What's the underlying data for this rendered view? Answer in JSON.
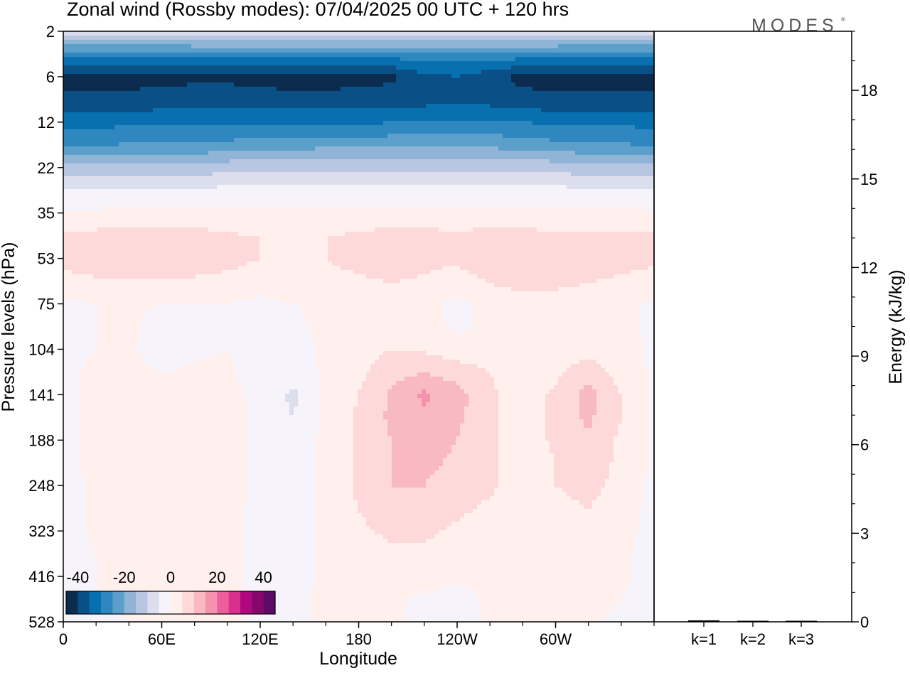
{
  "chart_data": [
    {
      "type": "heatmap",
      "title": "Zonal wind (Rossby modes):  07/04/2025  00 UTC  + 120 hrs",
      "xlabel": "Longitude",
      "ylabel": "Pressure levels (hPa)",
      "x_ticks": [
        "0",
        "60E",
        "120E",
        "180",
        "120W",
        "60W"
      ],
      "x_tick_values": [
        0,
        60,
        120,
        180,
        240,
        300
      ],
      "xlim": [
        0,
        360
      ],
      "y_ticks": [
        "2",
        "6",
        "12",
        "22",
        "35",
        "53",
        "75",
        "104",
        "141",
        "188",
        "248",
        "323",
        "416",
        "528"
      ],
      "colorbar": {
        "labels": [
          "-40",
          "-20",
          "0",
          "20",
          "40"
        ],
        "label_values": [
          -40,
          -20,
          0,
          20,
          40
        ],
        "levels": [
          -45,
          -40,
          -35,
          -30,
          -25,
          -20,
          -15,
          -10,
          -5,
          0,
          5,
          10,
          15,
          20,
          25,
          30,
          35,
          40,
          45
        ],
        "colors": [
          "#0c2c4f",
          "#0a4f85",
          "#0970b0",
          "#2e87bf",
          "#5c9fcb",
          "#8fb4d6",
          "#b8c6e2",
          "#dcdeee",
          "#f6f4fa",
          "#fff0ee",
          "#fdd9d9",
          "#f9b9c1",
          "#f592ad",
          "#ec5f9c",
          "#d9308f",
          "#b0087e",
          "#86076c",
          "#5b0a66"
        ]
      },
      "zonal_wind_field": {
        "description_levels_hPa": [
          2,
          4,
          6,
          9,
          12,
          16,
          22,
          28,
          35,
          44,
          53,
          64,
          75,
          88,
          104,
          122,
          141,
          165,
          188,
          218,
          248,
          285,
          323,
          370,
          416,
          472,
          528
        ],
        "longitudes": [
          0,
          20,
          40,
          60,
          80,
          100,
          120,
          140,
          160,
          180,
          200,
          220,
          240,
          260,
          280,
          300,
          320,
          340,
          360
        ],
        "u": [
          [
            -8,
            -8,
            -8,
            -8,
            -8,
            -8,
            -8,
            -8,
            -8,
            -8,
            -8,
            -8,
            -7,
            -8,
            -8,
            -8,
            -8,
            -8,
            -8
          ],
          [
            -32,
            -32,
            -32,
            -32,
            -31,
            -31,
            -31,
            -31,
            -31,
            -31,
            -31,
            -30,
            -29,
            -30,
            -31,
            -31,
            -32,
            -32,
            -32
          ],
          [
            -43,
            -43,
            -42,
            -42,
            -41,
            -41,
            -42,
            -43,
            -43,
            -42,
            -41,
            -36,
            -35,
            -38,
            -42,
            -43,
            -43,
            -43,
            -43
          ],
          [
            -38,
            -38,
            -38,
            -37,
            -37,
            -37,
            -37,
            -37,
            -37,
            -37,
            -37,
            -36,
            -35,
            -36,
            -37,
            -38,
            -38,
            -38,
            -38
          ],
          [
            -32,
            -32,
            -31,
            -31,
            -31,
            -31,
            -31,
            -31,
            -31,
            -31,
            -30,
            -29,
            -29,
            -29,
            -30,
            -31,
            -31,
            -31,
            -32
          ],
          [
            -26,
            -26,
            -25,
            -25,
            -25,
            -24,
            -23,
            -23,
            -22,
            -22,
            -22,
            -22,
            -22,
            -22,
            -23,
            -24,
            -25,
            -25,
            -26
          ],
          [
            -14,
            -14,
            -13,
            -13,
            -13,
            -12,
            -11,
            -11,
            -11,
            -11,
            -11,
            -11,
            -11,
            -11,
            -11,
            -12,
            -13,
            -13,
            -14
          ],
          [
            -5,
            -5,
            -4,
            -4,
            -4,
            -3,
            -3,
            -3,
            -3,
            -3,
            -3,
            -3,
            -3,
            -3,
            -3,
            -3,
            -4,
            -4,
            -5
          ],
          [
            1,
            1,
            2,
            2,
            2,
            2,
            2,
            2,
            2,
            2,
            2,
            2,
            2,
            2,
            2,
            2,
            2,
            2,
            1
          ],
          [
            6,
            7,
            7,
            7,
            7,
            6,
            5,
            4,
            5,
            6,
            7,
            7,
            6,
            7,
            7,
            6,
            6,
            6,
            6
          ],
          [
            7,
            8,
            8,
            8,
            8,
            7,
            5,
            4,
            5,
            7,
            8,
            7,
            6,
            10,
            9,
            8,
            7,
            7,
            6
          ],
          [
            3,
            4,
            4,
            4,
            4,
            3,
            2,
            2,
            3,
            4,
            5,
            4,
            2,
            5,
            7,
            6,
            5,
            4,
            3
          ],
          [
            -1,
            0,
            1,
            0,
            0,
            0,
            -1,
            0,
            1,
            2,
            4,
            1,
            -1,
            1,
            3,
            3,
            2,
            1,
            -1
          ],
          [
            -1,
            0,
            1,
            -2,
            -1,
            0,
            -2,
            -1,
            1,
            2,
            4,
            2,
            -1,
            1,
            2,
            2,
            2,
            1,
            -1
          ],
          [
            -1,
            0,
            1,
            -3,
            -1,
            0,
            -3,
            -2,
            1,
            3,
            5,
            4,
            2,
            2,
            1,
            2,
            3,
            2,
            -1
          ],
          [
            -1,
            1,
            2,
            0,
            1,
            1,
            -3,
            -3,
            1,
            4,
            8,
            10,
            8,
            5,
            2,
            4,
            8,
            3,
            -1
          ],
          [
            -1,
            1,
            2,
            0,
            1,
            2,
            -2,
            -6,
            1,
            5,
            11,
            16,
            12,
            6,
            2,
            6,
            12,
            5,
            -1
          ],
          [
            -1,
            1,
            2,
            0,
            1,
            3,
            -2,
            -5,
            1,
            6,
            11,
            14,
            11,
            6,
            2,
            6,
            11,
            5,
            -1
          ],
          [
            -1,
            1,
            2,
            0,
            1,
            3,
            -2,
            -2,
            1,
            6,
            10,
            12,
            10,
            6,
            2,
            6,
            9,
            4,
            -1
          ],
          [
            -1,
            1,
            2,
            0,
            1,
            3,
            -2,
            -2,
            1,
            6,
            10,
            11,
            9,
            6,
            2,
            5,
            7,
            4,
            -1
          ],
          [
            -2,
            1,
            2,
            0,
            1,
            3,
            -2,
            -2,
            1,
            6,
            10,
            10,
            8,
            6,
            2,
            5,
            6,
            4,
            -2
          ],
          [
            -2,
            1,
            2,
            0,
            1,
            2,
            -2,
            -2,
            1,
            5,
            8,
            8,
            6,
            4,
            2,
            4,
            5,
            3,
            -2
          ],
          [
            -2,
            1,
            2,
            0,
            1,
            2,
            -2,
            -2,
            1,
            4,
            6,
            6,
            4,
            3,
            1,
            3,
            4,
            2,
            -2
          ],
          [
            -2,
            0,
            1,
            0,
            1,
            2,
            -2,
            -2,
            1,
            3,
            4,
            4,
            2,
            2,
            1,
            2,
            3,
            1,
            -2
          ],
          [
            -2,
            0,
            1,
            0,
            1,
            2,
            -2,
            -2,
            1,
            2,
            2,
            2,
            1,
            1,
            1,
            1,
            2,
            1,
            -2
          ],
          [
            -2,
            0,
            1,
            0,
            1,
            1,
            -1,
            -1,
            1,
            1,
            1,
            -1,
            -2,
            1,
            1,
            1,
            1,
            0,
            -2
          ],
          [
            -2,
            -1,
            0,
            0,
            1,
            1,
            -1,
            -1,
            1,
            1,
            1,
            -2,
            -3,
            1,
            1,
            1,
            1,
            -1,
            -2
          ]
        ]
      }
    },
    {
      "type": "bar",
      "categories": [
        "k=1",
        "k=2",
        "k=3"
      ],
      "values": [
        0.05,
        0.02,
        0.02
      ],
      "ylabel": "Energy (kJ/kg)",
      "y_ticks": [
        "0",
        "3",
        "6",
        "9",
        "12",
        "15",
        "18"
      ],
      "y_tick_values": [
        0,
        3,
        6,
        9,
        12,
        15,
        18
      ],
      "ylim": [
        0,
        20
      ],
      "grid": false
    }
  ],
  "logo": "MODES"
}
